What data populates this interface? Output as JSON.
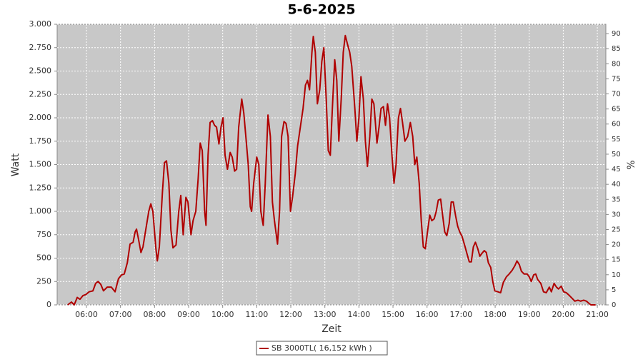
{
  "chart_data": {
    "type": "line",
    "title": "5-6-2025",
    "x_label": "Zeit",
    "y_label": "Watt",
    "y2_label": "%",
    "xlim": [
      5.14,
      21.25
    ],
    "xticks": [
      {
        "value": 6,
        "label": "06:00"
      },
      {
        "value": 7,
        "label": "07:00"
      },
      {
        "value": 8,
        "label": "08:00"
      },
      {
        "value": 9,
        "label": "09:00"
      },
      {
        "value": 10,
        "label": "10:00"
      },
      {
        "value": 11,
        "label": "11:00"
      },
      {
        "value": 12,
        "label": "12:00"
      },
      {
        "value": 13,
        "label": "13:00"
      },
      {
        "value": 14,
        "label": "14:00"
      },
      {
        "value": 15,
        "label": "15:00"
      },
      {
        "value": 16,
        "label": "16:00"
      },
      {
        "value": 17,
        "label": "17:00"
      },
      {
        "value": 18,
        "label": "18:00"
      },
      {
        "value": 19,
        "label": "19:00"
      },
      {
        "value": 20,
        "label": "20:00"
      },
      {
        "value": 21,
        "label": "21:00"
      }
    ],
    "ylim": [
      0,
      3000
    ],
    "yticks": [
      0,
      250,
      500,
      750,
      {
        "value": 1000,
        "label": "1.000"
      },
      {
        "value": 1250,
        "label": "1.250"
      },
      {
        "value": 1500,
        "label": "1.500"
      },
      {
        "value": 1750,
        "label": "1.750"
      },
      {
        "value": 2000,
        "label": "2.000"
      },
      {
        "value": 2250,
        "label": "2.250"
      },
      {
        "value": 2500,
        "label": "2.500"
      },
      {
        "value": 2750,
        "label": "2.750"
      },
      {
        "value": 3000,
        "label": "3.000"
      }
    ],
    "y2lim": [
      0,
      93.1
    ],
    "y2ticks": [
      0,
      5,
      10,
      15,
      20,
      25,
      30,
      35,
      40,
      45,
      50,
      55,
      60,
      65,
      70,
      75,
      80,
      85,
      90
    ],
    "grid": true,
    "legend": "bottom",
    "x": [
      5.45,
      5.56,
      5.64,
      5.73,
      5.81,
      5.9,
      5.98,
      6.08,
      6.19,
      6.27,
      6.34,
      6.42,
      6.5,
      6.61,
      6.73,
      6.84,
      6.94,
      7.03,
      7.11,
      7.2,
      7.28,
      7.37,
      7.43,
      7.47,
      7.53,
      7.6,
      7.66,
      7.74,
      7.83,
      7.89,
      7.95,
      8.04,
      8.08,
      8.14,
      8.23,
      8.29,
      8.35,
      8.42,
      8.48,
      8.54,
      8.63,
      8.71,
      8.77,
      8.84,
      8.92,
      8.98,
      9.07,
      9.13,
      9.21,
      9.28,
      9.34,
      9.4,
      9.47,
      9.51,
      9.57,
      9.63,
      9.7,
      9.76,
      9.82,
      9.89,
      9.95,
      10.01,
      10.07,
      10.14,
      10.22,
      10.28,
      10.35,
      10.41,
      10.47,
      10.56,
      10.62,
      10.68,
      10.75,
      10.81,
      10.85,
      10.91,
      11.0,
      11.06,
      11.12,
      11.19,
      11.25,
      11.33,
      11.4,
      11.46,
      11.52,
      11.61,
      11.67,
      11.73,
      11.8,
      11.86,
      11.92,
      11.99,
      12.05,
      12.13,
      12.2,
      12.28,
      12.36,
      12.43,
      12.49,
      12.55,
      12.62,
      12.66,
      12.72,
      12.78,
      12.85,
      12.91,
      12.97,
      13.04,
      13.1,
      13.16,
      13.22,
      13.29,
      13.35,
      13.41,
      13.48,
      13.54,
      13.6,
      13.67,
      13.73,
      13.79,
      13.88,
      13.94,
      14.0,
      14.06,
      14.13,
      14.19,
      14.25,
      14.32,
      14.38,
      14.44,
      14.53,
      14.59,
      14.65,
      14.72,
      14.78,
      14.84,
      14.9,
      14.97,
      15.03,
      15.09,
      15.16,
      15.22,
      15.28,
      15.35,
      15.43,
      15.51,
      15.58,
      15.64,
      15.7,
      15.77,
      15.83,
      15.89,
      15.95,
      16.02,
      16.08,
      16.14,
      16.21,
      16.27,
      16.33,
      16.4,
      16.46,
      16.52,
      16.58,
      16.65,
      16.71,
      16.77,
      16.84,
      16.9,
      16.96,
      17.03,
      17.11,
      17.17,
      17.24,
      17.3,
      17.36,
      17.42,
      17.49,
      17.55,
      17.61,
      17.68,
      17.74,
      17.8,
      17.87,
      17.93,
      17.99,
      18.08,
      18.16,
      18.24,
      18.33,
      18.41,
      18.5,
      18.58,
      18.64,
      18.71,
      18.77,
      18.85,
      18.94,
      19.0,
      19.06,
      19.13,
      19.19,
      19.25,
      19.34,
      19.42,
      19.5,
      19.59,
      19.65,
      19.73,
      19.8,
      19.86,
      19.94,
      20.01,
      20.09,
      20.18,
      20.26,
      20.34,
      20.43,
      20.51,
      20.6,
      20.68,
      20.74,
      20.81,
      20.95
    ],
    "series": [
      {
        "name": "SB 3000TL( 16,152 kWh )",
        "color": "#b00000",
        "values": [
          0,
          30,
          0,
          80,
          60,
          100,
          110,
          140,
          150,
          230,
          250,
          220,
          150,
          190,
          190,
          140,
          280,
          320,
          330,
          450,
          650,
          670,
          780,
          810,
          700,
          560,
          620,
          800,
          1000,
          1080,
          1000,
          600,
          470,
          620,
          1200,
          1520,
          1540,
          1300,
          800,
          610,
          640,
          1000,
          1170,
          750,
          1150,
          1100,
          750,
          900,
          1000,
          1350,
          1730,
          1650,
          1000,
          850,
          1600,
          1950,
          1970,
          1920,
          1900,
          1720,
          1900,
          2000,
          1600,
          1450,
          1630,
          1580,
          1430,
          1450,
          1900,
          2200,
          2050,
          1800,
          1500,
          1050,
          1000,
          1300,
          1580,
          1500,
          1000,
          850,
          1300,
          2030,
          1800,
          1100,
          900,
          650,
          1000,
          1800,
          1960,
          1940,
          1800,
          1000,
          1150,
          1400,
          1700,
          1900,
          2100,
          2350,
          2400,
          2300,
          2700,
          2870,
          2700,
          2150,
          2300,
          2600,
          2750,
          2200,
          1650,
          1600,
          2100,
          2620,
          2400,
          1750,
          2200,
          2700,
          2880,
          2780,
          2700,
          2550,
          2100,
          1750,
          2000,
          2440,
          2200,
          1750,
          1480,
          1800,
          2200,
          2150,
          1730,
          1900,
          2100,
          2120,
          1920,
          2150,
          2000,
          1600,
          1300,
          1500,
          2000,
          2100,
          1950,
          1750,
          1800,
          1950,
          1800,
          1500,
          1580,
          1300,
          900,
          620,
          600,
          800,
          960,
          900,
          920,
          1000,
          1120,
          1130,
          950,
          780,
          740,
          870,
          1100,
          1100,
          950,
          840,
          780,
          730,
          630,
          550,
          460,
          460,
          620,
          670,
          600,
          520,
          550,
          580,
          560,
          450,
          400,
          250,
          150,
          140,
          130,
          240,
          300,
          330,
          370,
          420,
          470,
          430,
          360,
          330,
          330,
          300,
          250,
          320,
          330,
          270,
          230,
          140,
          130,
          190,
          140,
          230,
          190,
          170,
          200,
          140,
          130,
          100,
          70,
          40,
          50,
          40,
          50,
          40,
          20,
          0,
          0
        ]
      }
    ]
  }
}
